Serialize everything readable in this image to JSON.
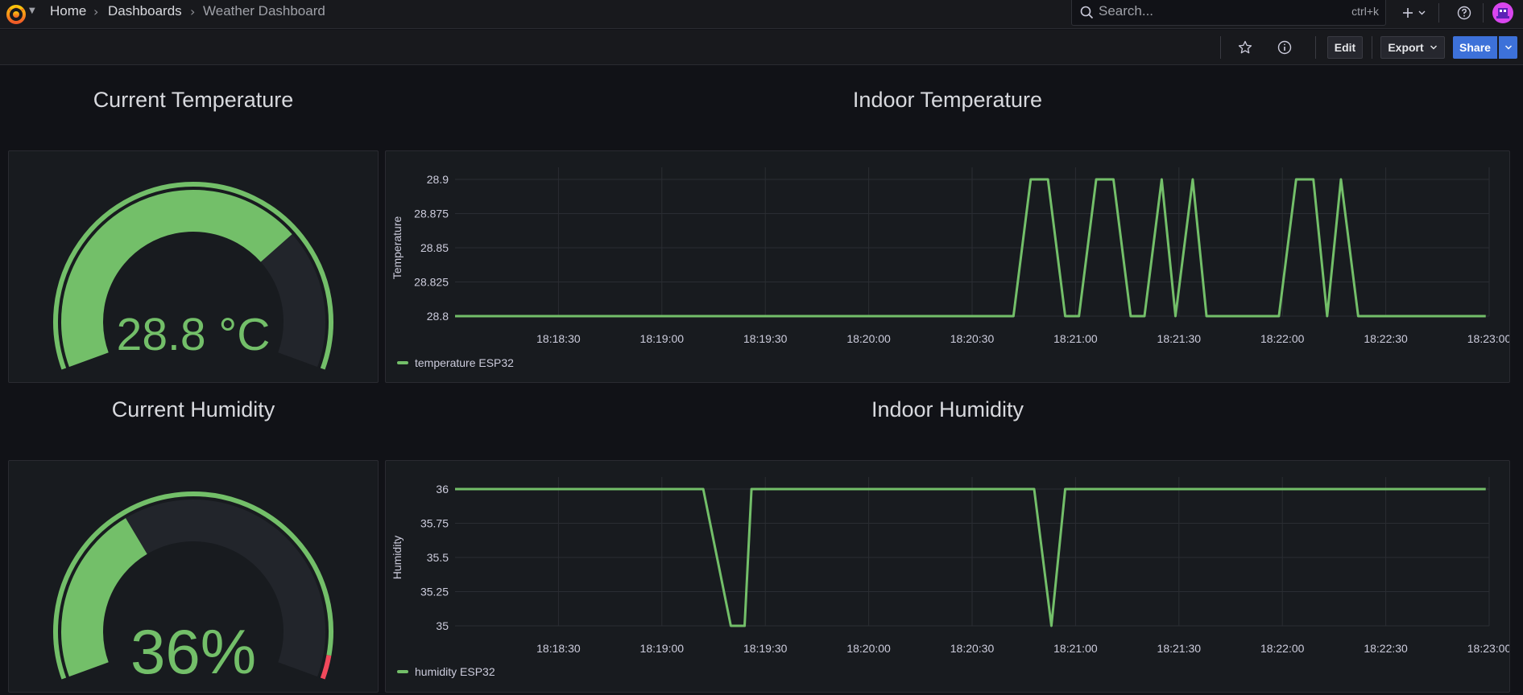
{
  "header": {
    "breadcrumbs": [
      "Home",
      "Dashboards",
      "Weather Dashboard"
    ],
    "search_placeholder": "Search...",
    "search_shortcut": "ctrl+k"
  },
  "toolbar": {
    "edit_label": "Edit",
    "export_label": "Export",
    "share_label": "Share"
  },
  "icons": [
    "grafana-logo-icon",
    "search-icon",
    "plus-icon",
    "help-icon",
    "avatar",
    "star-icon",
    "info-icon",
    "chevron-down-icon"
  ],
  "colors": {
    "series": "#73bf69",
    "threshold": "#f2495c",
    "primary": "#3d71d9",
    "background": "#111217"
  },
  "panels": {
    "current_temperature": {
      "title": "Current Temperature",
      "value": "28.8 °C",
      "gauge_fraction": 0.72
    },
    "current_humidity": {
      "title": "Current Humidity",
      "value": "36%",
      "gauge_fraction": 0.36
    },
    "indoor_temperature": {
      "title": "Indoor Temperature",
      "legend": "temperature ESP32"
    },
    "indoor_humidity": {
      "title": "Indoor Humidity",
      "legend": "humidity ESP32"
    }
  },
  "chart_data": [
    {
      "type": "line",
      "title": "Indoor Temperature",
      "ylabel": "Temperature",
      "ylim": [
        28.8,
        28.9
      ],
      "yticks": [
        "28.9",
        "28.875",
        "28.85",
        "28.825",
        "28.8"
      ],
      "xlim": [
        "18:18:00",
        "18:23:00"
      ],
      "xticks": [
        "18:18:30",
        "18:19:00",
        "18:19:30",
        "18:20:00",
        "18:20:30",
        "18:21:00",
        "18:21:30",
        "18:22:00",
        "18:22:30",
        "18:23:00"
      ],
      "grid": true,
      "legend_position": "bottom-left",
      "series": [
        {
          "name": "temperature ESP32",
          "x": [
            "18:18:00",
            "18:20:42",
            "18:20:47",
            "18:20:52",
            "18:20:57",
            "18:21:01",
            "18:21:06",
            "18:21:11",
            "18:21:16",
            "18:21:20",
            "18:21:25",
            "18:21:29",
            "18:21:34",
            "18:21:38",
            "18:21:44",
            "18:21:59",
            "18:22:04",
            "18:22:09",
            "18:22:13",
            "18:22:17",
            "18:22:22",
            "18:22:27",
            "18:22:59"
          ],
          "y": [
            28.8,
            28.8,
            28.9,
            28.9,
            28.8,
            28.8,
            28.9,
            28.9,
            28.8,
            28.8,
            28.9,
            28.8,
            28.9,
            28.8,
            28.8,
            28.8,
            28.9,
            28.9,
            28.8,
            28.9,
            28.8,
            28.8,
            28.8
          ]
        }
      ]
    },
    {
      "type": "line",
      "title": "Indoor Humidity",
      "ylabel": "Humidity",
      "ylim": [
        35,
        36
      ],
      "yticks": [
        "36",
        "35.75",
        "35.5",
        "35.25",
        "35"
      ],
      "xlim": [
        "18:18:00",
        "18:23:00"
      ],
      "xticks": [
        "18:18:30",
        "18:19:00",
        "18:19:30",
        "18:20:00",
        "18:20:30",
        "18:21:00",
        "18:21:30",
        "18:22:00",
        "18:22:30",
        "18:23:00"
      ],
      "grid": true,
      "legend_position": "bottom-left",
      "series": [
        {
          "name": "humidity ESP32",
          "x": [
            "18:18:00",
            "18:19:12",
            "18:19:20",
            "18:19:24",
            "18:19:26",
            "18:20:48",
            "18:20:53",
            "18:20:57",
            "18:22:59"
          ],
          "y": [
            36,
            36,
            35,
            35,
            36,
            36,
            35,
            36,
            36
          ]
        }
      ]
    }
  ]
}
